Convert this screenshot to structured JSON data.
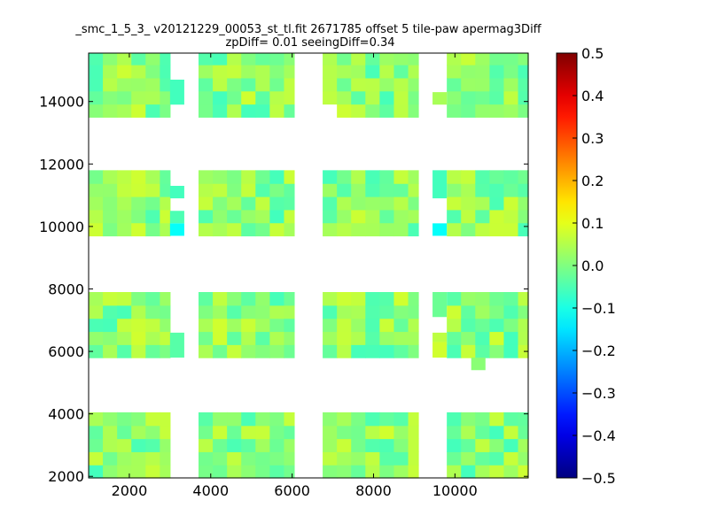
{
  "chart_data": {
    "type": "heatmap",
    "title": "_smc_1_5_3_ v20121229_00053_st_tl.fit 2671785 offset 5 tile-paw apermag3Diff",
    "subtitle": "zpDiff= 0.01 seeingDiff=0.34",
    "xlim": [
      1000,
      11800
    ],
    "ylim": [
      1950,
      15550
    ],
    "x_ticks": [
      2000,
      4000,
      6000,
      8000,
      10000
    ],
    "y_ticks": [
      2000,
      4000,
      6000,
      8000,
      10000,
      12000,
      14000
    ],
    "x_tick_labels": [
      "2000",
      "4000",
      "6000",
      "8000",
      "10000"
    ],
    "y_tick_labels": [
      "2000",
      "4000",
      "6000",
      "8000",
      "10000",
      "12000",
      "14000"
    ],
    "colorbar": {
      "colormap": "jet",
      "range": [
        -0.5,
        0.5
      ],
      "ticks": [
        0.5,
        0.4,
        0.3,
        0.2,
        0.1,
        0.0,
        -0.1,
        -0.2,
        -0.3,
        -0.4,
        -0.5
      ],
      "tick_labels": [
        "0.5",
        "0.4",
        "0.3",
        "0.2",
        "0.1",
        "0.0",
        "−0.1",
        "−0.2",
        "−0.3",
        "−0.4",
        "−0.5"
      ]
    },
    "cell_size": [
      350,
      420
    ],
    "column_blocks": [
      {
        "x": [
          1000,
          3000
        ]
      },
      {
        "x": [
          3700,
          6050
        ]
      },
      {
        "x": [
          6750,
          9100
        ]
      },
      {
        "x": [
          9800,
          11800
        ]
      }
    ],
    "row_bands": [
      {
        "y": [
          1950,
          4050
        ]
      },
      {
        "y": [
          5800,
          7900
        ]
      },
      {
        "y": [
          9700,
          11800
        ]
      },
      {
        "y": [
          13500,
          15550
        ]
      }
    ],
    "gap_cells": [
      {
        "x": [
          3000,
          3350
        ],
        "y": [
          5800,
          6600
        ],
        "value": -0.04
      },
      {
        "x": [
          3000,
          3350
        ],
        "y": [
          9700,
          10100
        ],
        "value": -0.12
      },
      {
        "x": [
          3000,
          3350
        ],
        "y": [
          10100,
          10500
        ],
        "value": -0.05
      },
      {
        "x": [
          3000,
          3350
        ],
        "y": [
          10900,
          11300
        ],
        "value": -0.06
      },
      {
        "x": [
          3000,
          3350
        ],
        "y": [
          13900,
          14700
        ],
        "value": -0.06
      },
      {
        "x": [
          9450,
          9800
        ],
        "y": [
          9700,
          10100
        ],
        "value": -0.12
      },
      {
        "x": [
          9450,
          9800
        ],
        "y": [
          10900,
          11800
        ],
        "value": -0.06
      },
      {
        "x": [
          9450,
          9800
        ],
        "y": [
          5800,
          6300
        ],
        "value": 0.08
      },
      {
        "x": [
          9450,
          9800
        ],
        "y": [
          6300,
          6600
        ],
        "value": 0.06
      },
      {
        "x": [
          9450,
          9800
        ],
        "y": [
          7100,
          7900
        ],
        "value": -0.02
      },
      {
        "x": [
          9450,
          9800
        ],
        "y": [
          13900,
          14300
        ],
        "value": 0.04
      },
      {
        "x": [
          10400,
          10750
        ],
        "y": [
          5400,
          5800
        ],
        "value": 0.01
      }
    ],
    "missing_cells": [
      {
        "x": [
          9800,
          10150
        ],
        "y": [
          13900,
          14300
        ]
      },
      {
        "x": [
          6750,
          7100
        ],
        "y": [
          13500,
          13900
        ]
      },
      {
        "x": [
          9800,
          10150
        ],
        "y": [
          7100,
          7500
        ]
      }
    ],
    "value_summary": {
      "typical": 0.0,
      "min": -0.12,
      "max": 0.1
    }
  }
}
